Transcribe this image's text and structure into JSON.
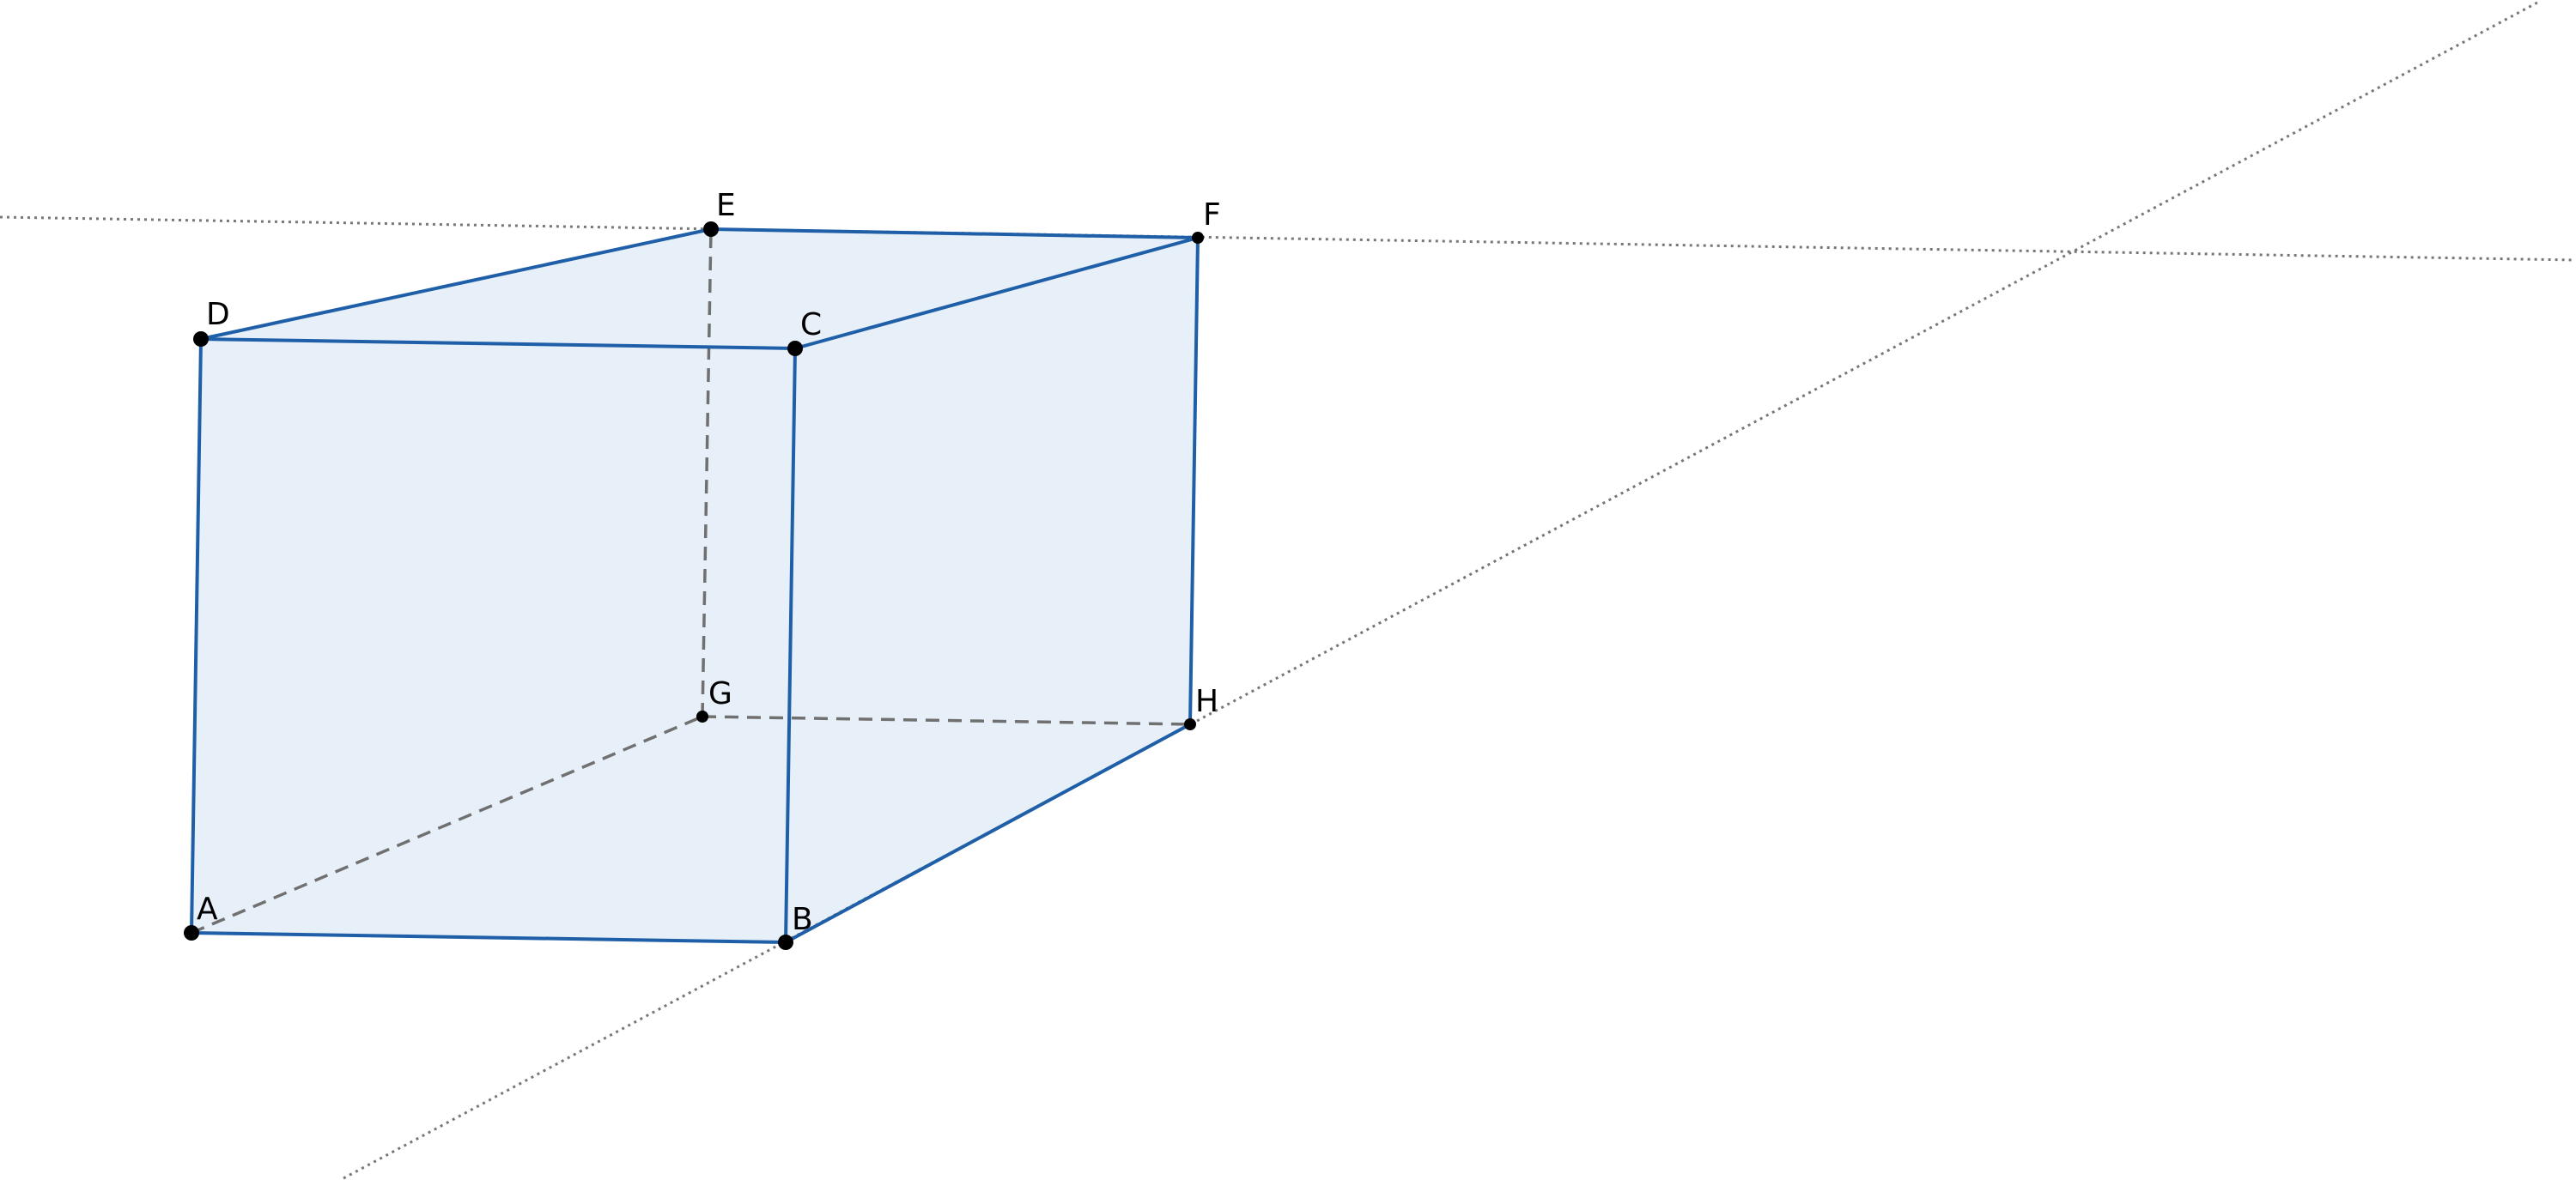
{
  "diagram": {
    "vertices": [
      {
        "id": "A",
        "label": "A"
      },
      {
        "id": "B",
        "label": "B"
      },
      {
        "id": "C",
        "label": "C"
      },
      {
        "id": "D",
        "label": "D"
      },
      {
        "id": "E",
        "label": "E"
      },
      {
        "id": "F",
        "label": "F"
      },
      {
        "id": "G",
        "label": "G"
      },
      {
        "id": "H",
        "label": "H"
      }
    ],
    "visible_edges": [
      [
        "A",
        "B"
      ],
      [
        "B",
        "C"
      ],
      [
        "C",
        "D"
      ],
      [
        "D",
        "A"
      ],
      [
        "D",
        "E"
      ],
      [
        "E",
        "F"
      ],
      [
        "F",
        "C"
      ],
      [
        "F",
        "H"
      ],
      [
        "H",
        "B"
      ]
    ],
    "hidden_edges": [
      [
        "A",
        "G"
      ],
      [
        "G",
        "H"
      ],
      [
        "G",
        "E"
      ]
    ],
    "auxiliary_lines": [
      {
        "through": [
          "E",
          "F"
        ],
        "style": "dotted"
      },
      {
        "through": [
          "B",
          "H"
        ],
        "style": "dotted"
      }
    ],
    "colors": {
      "edge": "#1f5fa8",
      "face_fill": "#1565c0",
      "hidden_edge": "#707070",
      "auxiliary": "#777777",
      "vertex": "#000000"
    }
  }
}
